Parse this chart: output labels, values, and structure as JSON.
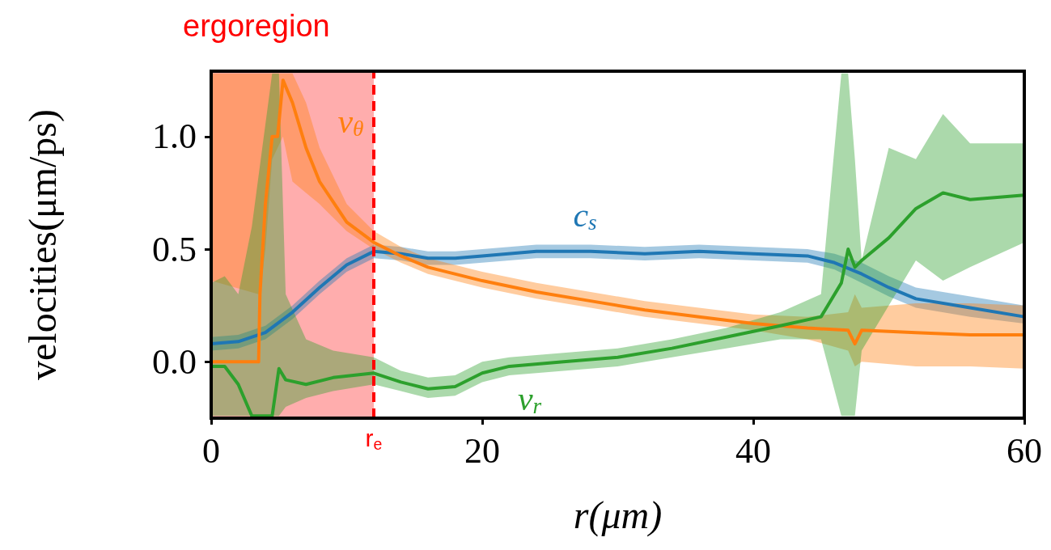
{
  "chart_data": {
    "type": "line",
    "xlabel": "r(μm)",
    "ylabel": "velocities(μm/ps)",
    "xlim": [
      0,
      60
    ],
    "xticks": [
      0,
      20,
      40,
      60
    ],
    "ylim": [
      -0.25,
      1.29
    ],
    "yticks": [
      {
        "value": 0,
        "label": "0.0"
      },
      {
        "value": 0.5,
        "label": "0.5"
      },
      {
        "value": 1,
        "label": "1.0"
      }
    ],
    "grid": false,
    "series": [
      {
        "name": "c$_{s}$",
        "color": "#1f77b4",
        "x": [
          0,
          2,
          4,
          6,
          8,
          10,
          12,
          14,
          16,
          18,
          20,
          24,
          28,
          32,
          36,
          40,
          44,
          46,
          48,
          50,
          52,
          56,
          60
        ],
        "values": [
          0.08,
          0.09,
          0.13,
          0.22,
          0.33,
          0.43,
          0.49,
          0.48,
          0.46,
          0.46,
          0.47,
          0.49,
          0.49,
          0.48,
          0.49,
          0.48,
          0.47,
          0.44,
          0.39,
          0.33,
          0.28,
          0.24,
          0.2
        ],
        "lower": [
          0.05,
          0.06,
          0.1,
          0.19,
          0.3,
          0.4,
          0.46,
          0.45,
          0.43,
          0.43,
          0.44,
          0.46,
          0.46,
          0.45,
          0.46,
          0.45,
          0.44,
          0.41,
          0.35,
          0.29,
          0.24,
          0.2,
          0.17
        ],
        "upper": [
          0.11,
          0.12,
          0.16,
          0.25,
          0.36,
          0.46,
          0.52,
          0.51,
          0.49,
          0.49,
          0.5,
          0.52,
          0.52,
          0.51,
          0.52,
          0.51,
          0.5,
          0.48,
          0.44,
          0.38,
          0.33,
          0.29,
          0.25
        ]
      },
      {
        "name": "v$_{θ}$",
        "color": "#ff7f0e",
        "x": [
          0,
          3.5,
          3.6,
          4,
          4.5,
          4.9,
          5.3,
          6,
          7,
          8,
          10,
          12,
          14,
          16,
          20,
          24,
          28,
          32,
          36,
          40,
          44,
          47,
          47.5,
          48,
          52,
          56,
          60
        ],
        "values": [
          0,
          0,
          0.3,
          0.7,
          1.0,
          1.0,
          1.25,
          1.15,
          0.95,
          0.8,
          0.62,
          0.53,
          0.47,
          0.42,
          0.36,
          0.31,
          0.27,
          0.23,
          0.2,
          0.17,
          0.15,
          0.14,
          0.08,
          0.14,
          0.13,
          0.12,
          0.12
        ],
        "lower": [
          0.36,
          0.3,
          0.3,
          0.5,
          0.9,
          0.95,
          1.0,
          0.8,
          0.75,
          0.7,
          0.58,
          0.5,
          0.44,
          0.39,
          0.33,
          0.28,
          0.24,
          0.2,
          0.17,
          0.14,
          0.1,
          0.05,
          -0.02,
          0.0,
          -0.02,
          -0.02,
          -0.03
        ],
        "upper": [
          1.28,
          1.28,
          1.28,
          1.28,
          1.28,
          1.28,
          1.28,
          1.28,
          1.15,
          0.95,
          0.7,
          0.58,
          0.51,
          0.46,
          0.4,
          0.35,
          0.31,
          0.27,
          0.24,
          0.21,
          0.2,
          0.22,
          0.3,
          0.24,
          0.26,
          0.26,
          0.25
        ]
      },
      {
        "name": "v$_{r}$",
        "color": "#2ca02c",
        "x": [
          0,
          1,
          2,
          3,
          4.5,
          5,
          5.5,
          7,
          9,
          12,
          14,
          16,
          18,
          20,
          22,
          26,
          30,
          34,
          38,
          42,
          45,
          46.5,
          47,
          47.5,
          48,
          50,
          52,
          54,
          56,
          60
        ],
        "values": [
          -0.02,
          -0.02,
          -0.1,
          -0.24,
          -0.24,
          -0.03,
          -0.08,
          -0.1,
          -0.07,
          -0.05,
          -0.09,
          -0.12,
          -0.11,
          -0.05,
          -0.02,
          0.0,
          0.02,
          0.06,
          0.11,
          0.16,
          0.2,
          0.35,
          0.5,
          0.42,
          0.45,
          0.55,
          0.68,
          0.75,
          0.72,
          0.74
        ],
        "lower": [
          -0.24,
          -0.24,
          -0.24,
          -0.24,
          -0.24,
          -0.24,
          -0.2,
          -0.16,
          -0.13,
          -0.1,
          -0.13,
          -0.16,
          -0.15,
          -0.09,
          -0.06,
          -0.04,
          -0.02,
          0.02,
          0.06,
          0.1,
          0.1,
          -0.24,
          -0.24,
          -0.24,
          0.05,
          0.25,
          0.45,
          0.36,
          0.42,
          0.53
        ],
        "upper": [
          0.35,
          0.38,
          0.3,
          0.6,
          1.28,
          1.28,
          0.3,
          0.1,
          0.05,
          0.02,
          -0.04,
          -0.07,
          -0.06,
          0.0,
          0.02,
          0.04,
          0.06,
          0.1,
          0.15,
          0.22,
          0.3,
          1.28,
          1.28,
          0.9,
          0.45,
          0.95,
          0.9,
          1.1,
          0.97,
          0.97
        ]
      }
    ],
    "bands": [
      {
        "axis": "x",
        "from": 0,
        "to": 12,
        "label": "ergoregion",
        "color": "#ff0000"
      }
    ],
    "ref_lines": [
      {
        "axis": "x",
        "value": 12,
        "label": "r$_{e}$",
        "color": "#ff0000",
        "line_style": "dashed"
      }
    ]
  }
}
